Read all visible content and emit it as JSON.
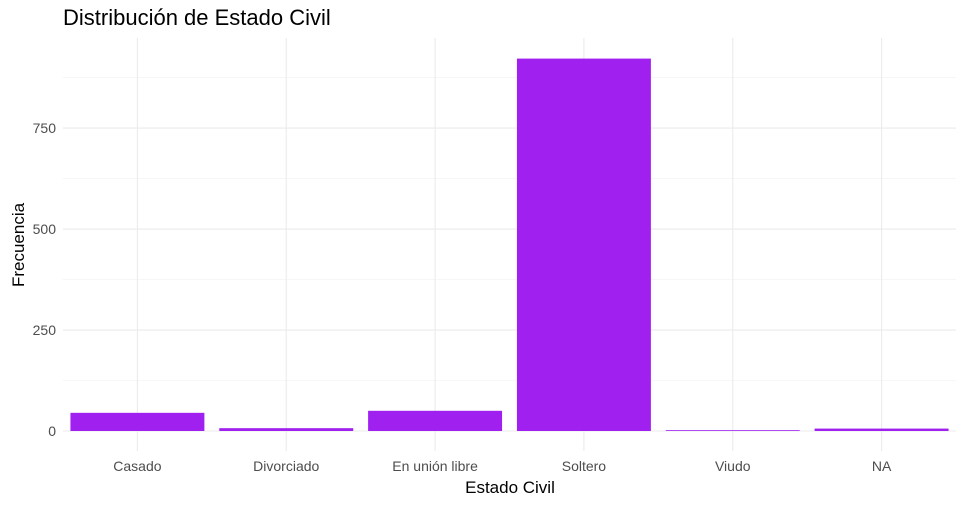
{
  "chart_data": {
    "type": "bar",
    "title": "Distribución de Estado Civil",
    "xlabel": "Estado Civil",
    "ylabel": "Frecuencia",
    "categories": [
      "Casado",
      "Divorciado",
      "En unión libre",
      "Soltero",
      "Viudo",
      "NA"
    ],
    "values": [
      45,
      7,
      50,
      922,
      2,
      6
    ],
    "ylim": [
      0,
      968
    ],
    "yticks": [
      0,
      250,
      500,
      750
    ],
    "grid": true,
    "legend": "none",
    "colors": {
      "bar": "#A020F0"
    }
  }
}
